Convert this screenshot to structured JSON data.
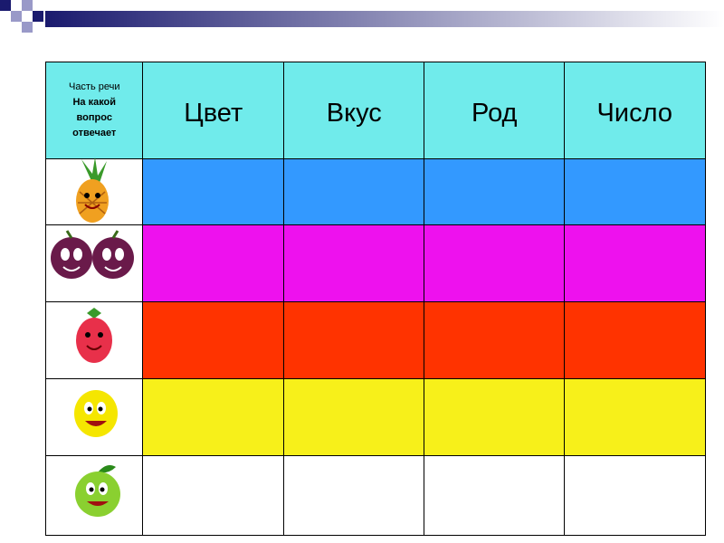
{
  "table": {
    "corner": {
      "line1": "Часть речи",
      "line2": "На какой вопрос отвечает"
    },
    "columns": [
      "Цвет",
      "Вкус",
      "Род",
      "Число"
    ],
    "header_color": "#70ebeb",
    "row_colors": [
      "#3399ff",
      "#ee11ee",
      "#ff3300",
      "#f7f01a",
      "#ffffff"
    ]
  }
}
